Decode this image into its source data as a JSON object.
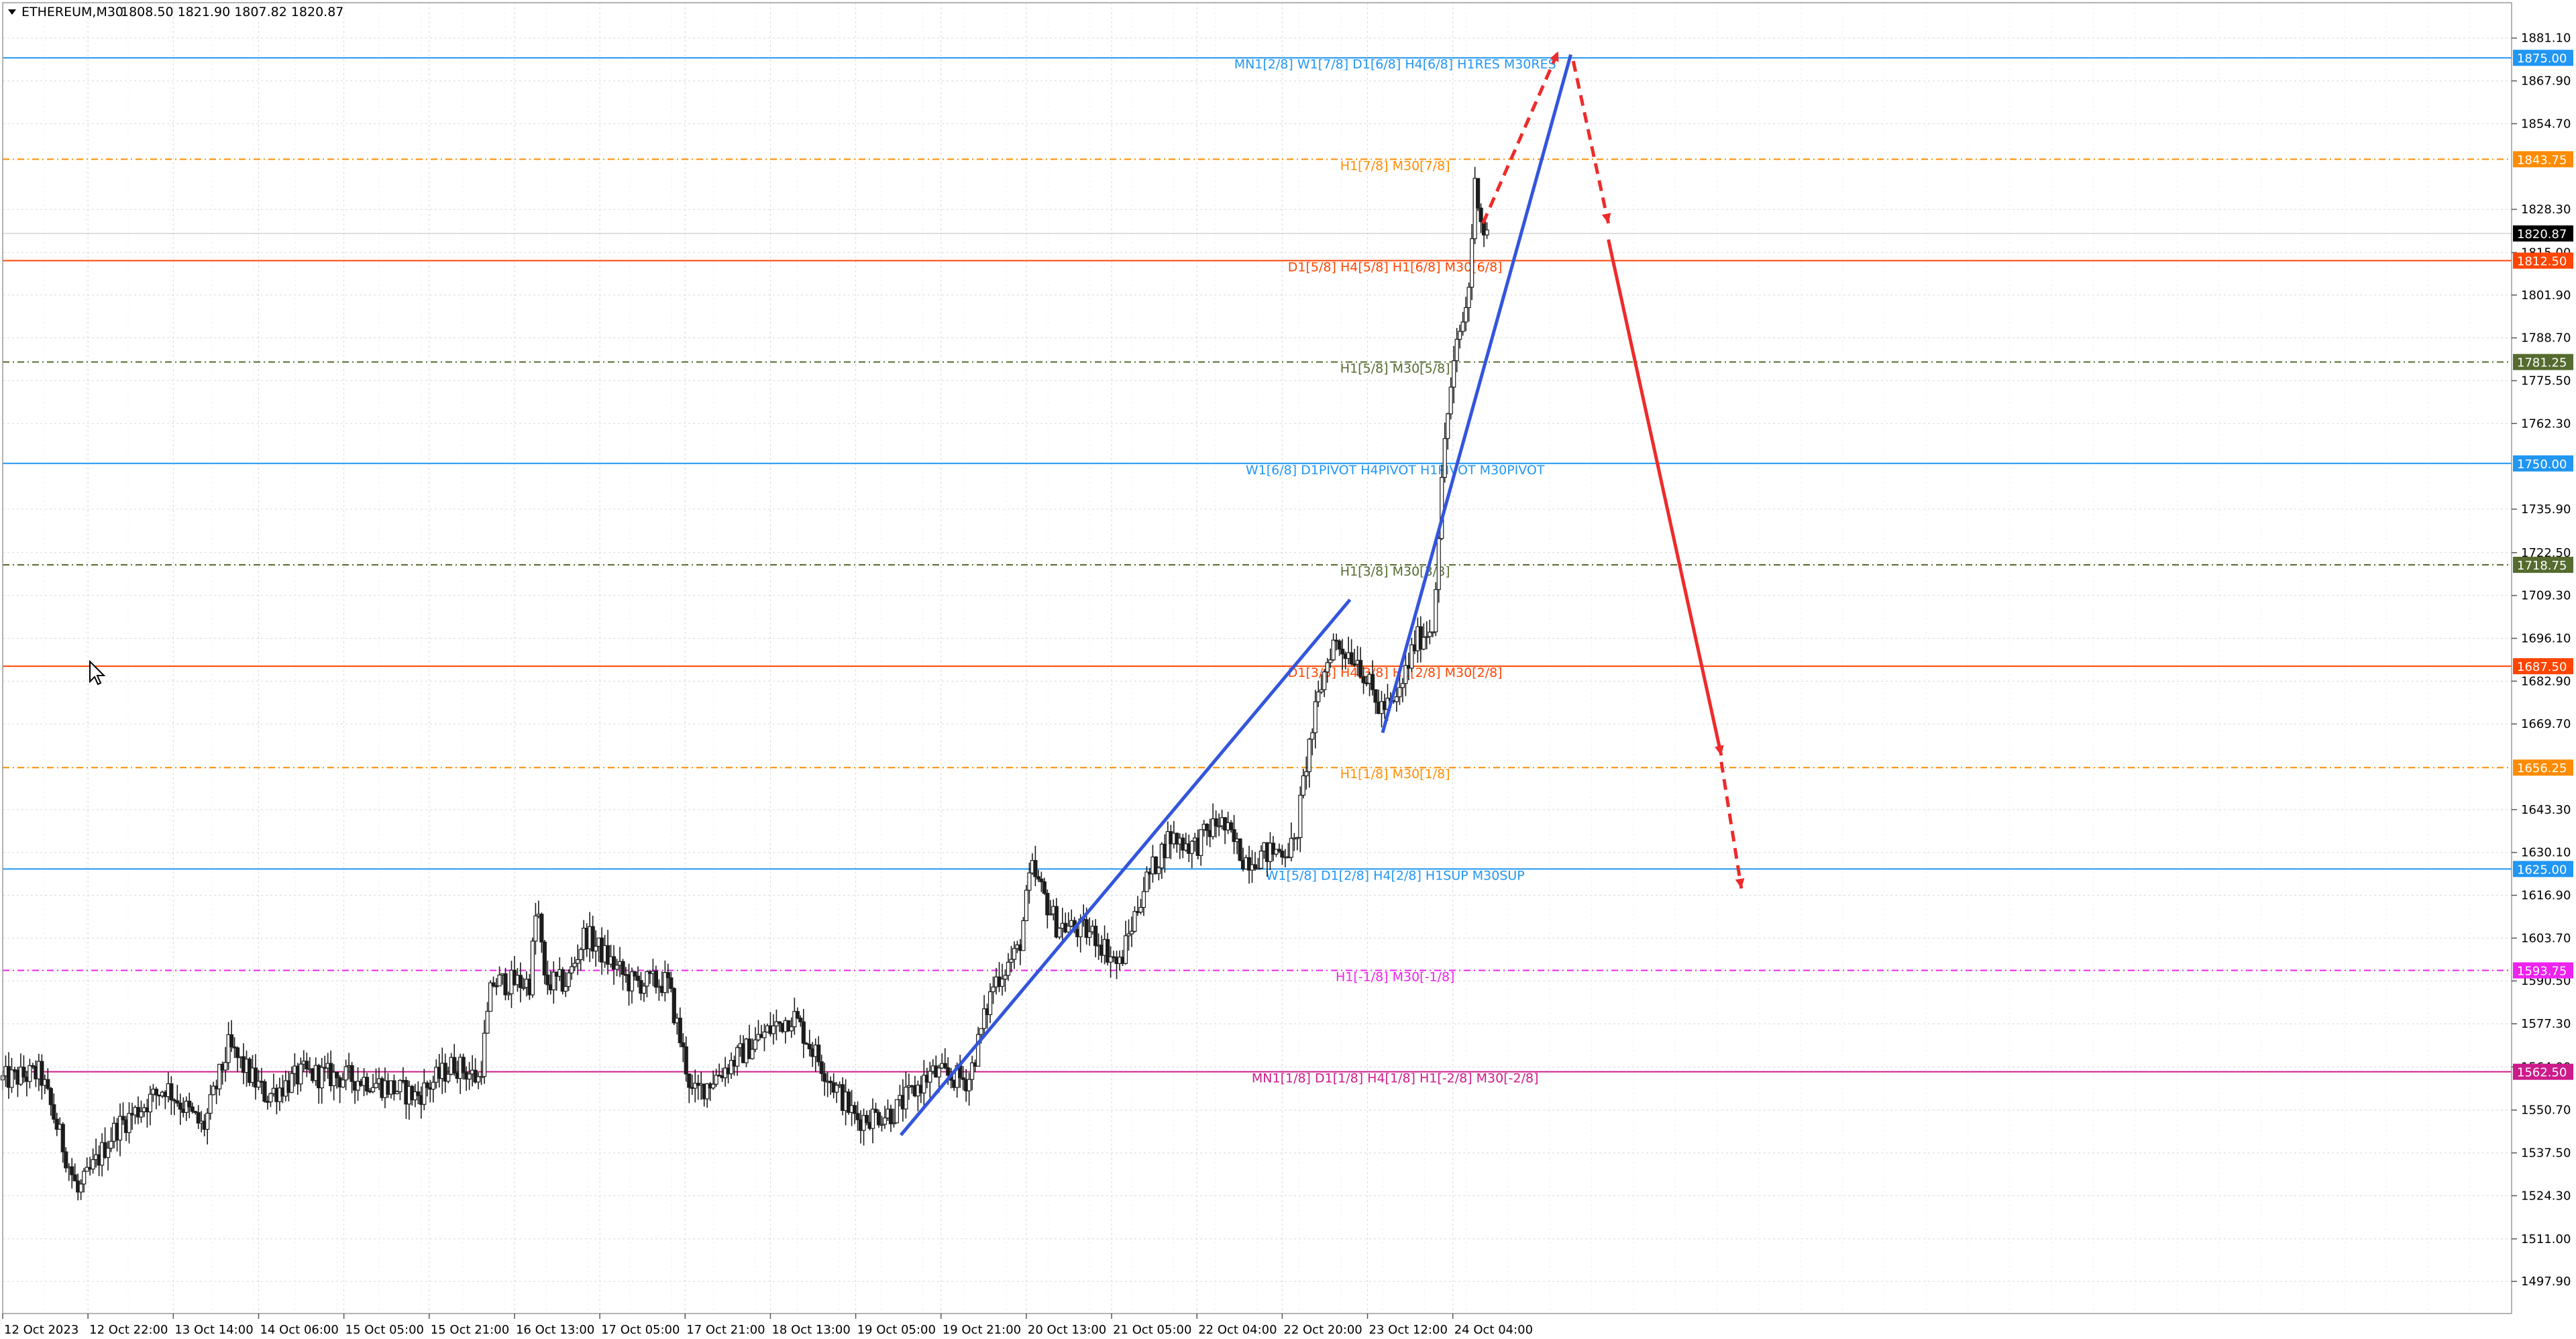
{
  "header": {
    "symbol_text": "ETHEREUM,M30",
    "ohlc_text": "1808.50 1821.90 1807.82 1820.87"
  },
  "colors": {
    "blue": "#2196f3",
    "orange": "#ff8c00",
    "red_orange": "#ff4500",
    "olive": "#556b2f",
    "magenta": "#ee22ee",
    "crimson": "#cc1b8a",
    "dark": "#1c1c1c",
    "trend": "#3355dd",
    "forecast": "#ee2b2b"
  },
  "chart_data": {
    "type": "candlestick",
    "title": "ETHEREUM,M30",
    "ylim": [
      1488.0,
      1892.0
    ],
    "x_range": [
      0,
      100
    ],
    "y_ticks": [
      1881.1,
      1867.9,
      1854.7,
      1828.3,
      1815.0,
      1801.9,
      1788.7,
      1775.5,
      1762.3,
      1735.9,
      1722.5,
      1709.3,
      1696.1,
      1682.9,
      1669.7,
      1643.3,
      1630.1,
      1616.9,
      1603.7,
      1590.5,
      1577.3,
      1564.0,
      1550.7,
      1537.5,
      1524.3,
      1511.0,
      1497.9
    ],
    "x_ticks": [
      {
        "label": "12 Oct 2023",
        "x": 0
      },
      {
        "label": "12 Oct 22:00",
        "x": 3.4
      },
      {
        "label": "13 Oct 14:00",
        "x": 6.8
      },
      {
        "label": "14 Oct 06:00",
        "x": 10.2
      },
      {
        "label": "15 Oct 05:00",
        "x": 13.6
      },
      {
        "label": "15 Oct 21:00",
        "x": 17.0
      },
      {
        "label": "16 Oct 13:00",
        "x": 20.4
      },
      {
        "label": "17 Oct 05:00",
        "x": 23.8
      },
      {
        "label": "17 Oct 21:00",
        "x": 27.2
      },
      {
        "label": "18 Oct 13:00",
        "x": 30.6
      },
      {
        "label": "19 Oct 05:00",
        "x": 34.0
      },
      {
        "label": "19 Oct 21:00",
        "x": 37.4
      },
      {
        "label": "20 Oct 13:00",
        "x": 40.8
      },
      {
        "label": "21 Oct 05:00",
        "x": 44.2
      },
      {
        "label": "22 Oct 04:00",
        "x": 47.6
      },
      {
        "label": "22 Oct 20:00",
        "x": 51.0
      },
      {
        "label": "23 Oct 12:00",
        "x": 54.4
      },
      {
        "label": "24 Oct 04:00",
        "x": 57.8
      }
    ],
    "price_anchors": [
      [
        0,
        1560
      ],
      [
        1.5,
        1562
      ],
      [
        3.0,
        1525
      ],
      [
        4.5,
        1545
      ],
      [
        6.5,
        1558
      ],
      [
        8.0,
        1545
      ],
      [
        9.0,
        1570
      ],
      [
        10.5,
        1555
      ],
      [
        12.0,
        1562
      ],
      [
        14.5,
        1560
      ],
      [
        16.5,
        1555
      ],
      [
        18.0,
        1565
      ],
      [
        19.0,
        1560
      ],
      [
        19.5,
        1590
      ],
      [
        21.0,
        1590
      ],
      [
        21.3,
        1615
      ],
      [
        21.6,
        1590
      ],
      [
        22.5,
        1590
      ],
      [
        23.2,
        1605
      ],
      [
        25.0,
        1590
      ],
      [
        26.5,
        1590
      ],
      [
        27.5,
        1555
      ],
      [
        29.0,
        1565
      ],
      [
        30.5,
        1575
      ],
      [
        31.5,
        1580
      ],
      [
        33.0,
        1560
      ],
      [
        34.0,
        1548
      ],
      [
        35.5,
        1550
      ],
      [
        37.0,
        1562
      ],
      [
        38.5,
        1560
      ],
      [
        39.5,
        1590
      ],
      [
        40.5,
        1600
      ],
      [
        41.0,
        1625
      ],
      [
        42.0,
        1608
      ],
      [
        43.5,
        1605
      ],
      [
        44.5,
        1595
      ],
      [
        45.5,
        1620
      ],
      [
        46.5,
        1635
      ],
      [
        47.5,
        1632
      ],
      [
        48.5,
        1640
      ],
      [
        49.5,
        1628
      ],
      [
        50.5,
        1630
      ],
      [
        51.5,
        1632
      ],
      [
        52.0,
        1660
      ],
      [
        52.5,
        1680
      ],
      [
        53.0,
        1695
      ],
      [
        54.0,
        1690
      ],
      [
        54.8,
        1675
      ],
      [
        55.5,
        1675
      ],
      [
        56.3,
        1695
      ],
      [
        57.0,
        1700
      ],
      [
        57.5,
        1760
      ],
      [
        58.0,
        1788
      ],
      [
        58.4,
        1800
      ],
      [
        58.7,
        1838
      ],
      [
        59.0,
        1822
      ],
      [
        59.2,
        1820.87
      ]
    ],
    "levels": [
      {
        "price": 1875.0,
        "badge": "1875.00",
        "label": "MN1[2/8] W1[7/8] D1[6/8] H4[6/8] H1RES M30RES",
        "color": "#2196f3",
        "style": "solid",
        "badge_bg": "#2196f3"
      },
      {
        "price": 1843.75,
        "badge": "1843.75",
        "label": "H1[7/8] M30[7/8]",
        "color": "#ff8c00",
        "style": "dashdot",
        "badge_bg": "#ff8c00"
      },
      {
        "price": 1812.5,
        "badge": "1812.50",
        "label": "D1[5/8] H4[5/8] H1[6/8] M30[6/8]",
        "color": "#ff4500",
        "style": "solid",
        "badge_bg": "#ff4500"
      },
      {
        "price": 1781.25,
        "badge": "1781.25",
        "label": "H1[5/8] M30[5/8]",
        "color": "#556b2f",
        "style": "dashdot",
        "badge_bg": "#556b2f"
      },
      {
        "price": 1750.0,
        "badge": "1750.00",
        "label": "W1[6/8] D1PIVOT H4PIVOT H1PIVOT M30PIVOT",
        "color": "#2196f3",
        "style": "solid",
        "badge_bg": "#2196f3"
      },
      {
        "price": 1718.75,
        "badge": "1718.75",
        "label": "H1[3/8] M30[3/8]",
        "color": "#556b2f",
        "style": "dashdot",
        "badge_bg": "#556b2f"
      },
      {
        "price": 1687.5,
        "badge": "1687.50",
        "label": "D1[3/8] H4[3/8] H1[2/8] M30[2/8]",
        "color": "#ff4500",
        "style": "solid",
        "badge_bg": "#ff4500"
      },
      {
        "price": 1656.25,
        "badge": "1656.25",
        "label": "H1[1/8] M30[1/8]",
        "color": "#ff8c00",
        "style": "dashdot",
        "badge_bg": "#ff8c00"
      },
      {
        "price": 1625.0,
        "badge": "1625.00",
        "label": "W1[5/8] D1[2/8] H4[2/8] H1SUP M30SUP",
        "color": "#2196f3",
        "style": "solid",
        "badge_bg": "#2196f3"
      },
      {
        "price": 1593.75,
        "badge": "1593.75",
        "label": "H1[-1/8] M30[-1/8]",
        "color": "#ee22ee",
        "style": "dashdot",
        "badge_bg": "#ee22ee"
      },
      {
        "price": 1562.5,
        "badge": "1562.50",
        "label": "MN1[1/8] D1[1/8] H4[1/8] H1[-2/8] M30[-2/8]",
        "color": "#cc1b8a",
        "style": "solid",
        "badge_bg": "#cc1b8a"
      }
    ],
    "current_price": {
      "price": 1820.87,
      "badge": "1820.87"
    },
    "trend_lines": [
      {
        "from": [
          35.8,
          1543
        ],
        "to": [
          53.7,
          1708
        ]
      },
      {
        "from": [
          55.0,
          1667
        ],
        "to": [
          62.5,
          1876
        ]
      }
    ],
    "forecast": [
      {
        "from": [
          59.0,
          1824
        ],
        "to": [
          62.0,
          1877
        ],
        "style": "dashed"
      },
      {
        "from": [
          62.6,
          1874
        ],
        "to": [
          64.0,
          1824
        ],
        "style": "dashed"
      },
      {
        "from": [
          64.0,
          1819
        ],
        "to": [
          68.5,
          1660
        ],
        "style": "solid"
      },
      {
        "from": [
          68.5,
          1658
        ],
        "to": [
          69.3,
          1619
        ],
        "style": "dashed"
      }
    ]
  }
}
